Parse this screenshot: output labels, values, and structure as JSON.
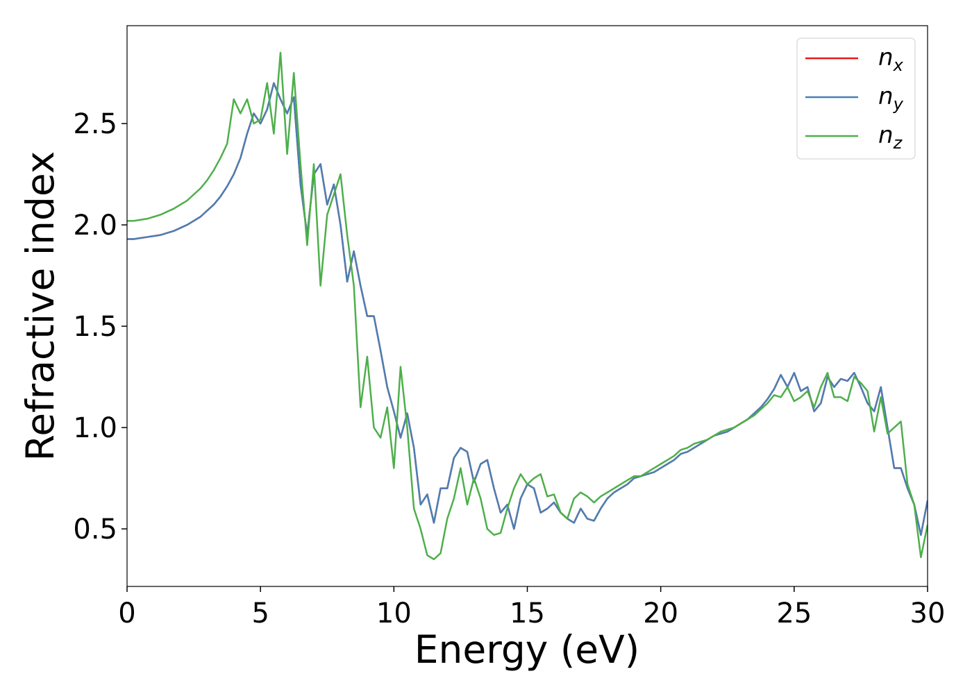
{
  "chart_data": {
    "type": "line",
    "xlabel": "Energy (eV)",
    "ylabel": "Refractive index",
    "x": [
      0,
      0.25,
      0.5,
      0.75,
      1,
      1.25,
      1.5,
      1.75,
      2,
      2.25,
      2.5,
      2.75,
      3,
      3.25,
      3.5,
      3.75,
      4,
      4.25,
      4.5,
      4.75,
      5,
      5.25,
      5.5,
      5.75,
      6,
      6.25,
      6.5,
      6.75,
      7,
      7.25,
      7.5,
      7.75,
      8,
      8.25,
      8.5,
      8.75,
      9,
      9.25,
      9.5,
      9.75,
      10,
      10.25,
      10.5,
      10.75,
      11,
      11.25,
      11.5,
      11.75,
      12,
      12.25,
      12.5,
      12.75,
      13,
      13.25,
      13.5,
      13.75,
      14,
      14.25,
      14.5,
      14.75,
      15,
      15.25,
      15.5,
      15.75,
      16,
      16.25,
      16.5,
      16.75,
      17,
      17.25,
      17.5,
      17.75,
      18,
      18.25,
      18.5,
      18.75,
      19,
      19.25,
      19.5,
      19.75,
      20,
      20.25,
      20.5,
      20.75,
      21,
      21.25,
      21.5,
      21.75,
      22,
      22.25,
      22.5,
      22.75,
      23,
      23.25,
      23.5,
      23.75,
      24,
      24.25,
      24.5,
      24.75,
      25,
      25.25,
      25.5,
      25.75,
      26,
      26.25,
      26.5,
      26.75,
      27,
      27.25,
      27.5,
      27.75,
      28,
      28.25,
      28.5,
      28.75,
      29,
      29.25,
      29.5,
      29.75,
      30
    ],
    "series": [
      {
        "name": "nx",
        "color": "#e41a1c",
        "values": [
          1.93,
          1.93,
          1.935,
          1.94,
          1.945,
          1.95,
          1.96,
          1.97,
          1.985,
          2.0,
          2.02,
          2.04,
          2.07,
          2.1,
          2.14,
          2.19,
          2.25,
          2.33,
          2.45,
          2.55,
          2.5,
          2.57,
          2.7,
          2.62,
          2.55,
          2.63,
          2.2,
          1.95,
          2.25,
          2.3,
          2.1,
          2.2,
          2.0,
          1.72,
          1.87,
          1.7,
          1.55,
          1.55,
          1.38,
          1.2,
          1.08,
          0.95,
          1.07,
          0.9,
          0.62,
          0.67,
          0.53,
          0.7,
          0.7,
          0.85,
          0.9,
          0.88,
          0.73,
          0.82,
          0.84,
          0.7,
          0.58,
          0.62,
          0.5,
          0.65,
          0.72,
          0.7,
          0.58,
          0.6,
          0.63,
          0.58,
          0.55,
          0.53,
          0.6,
          0.55,
          0.54,
          0.6,
          0.65,
          0.68,
          0.7,
          0.72,
          0.75,
          0.76,
          0.77,
          0.78,
          0.8,
          0.82,
          0.84,
          0.87,
          0.88,
          0.9,
          0.92,
          0.94,
          0.96,
          0.97,
          0.98,
          1.0,
          1.02,
          1.04,
          1.07,
          1.1,
          1.14,
          1.19,
          1.26,
          1.2,
          1.27,
          1.18,
          1.2,
          1.08,
          1.12,
          1.25,
          1.2,
          1.24,
          1.23,
          1.27,
          1.2,
          1.12,
          1.08,
          1.2,
          1.0,
          0.8,
          0.8,
          0.7,
          0.62,
          0.47,
          0.64
        ]
      },
      {
        "name": "ny",
        "color": "#4a7fb5",
        "values": [
          1.93,
          1.93,
          1.935,
          1.94,
          1.945,
          1.95,
          1.96,
          1.97,
          1.985,
          2.0,
          2.02,
          2.04,
          2.07,
          2.1,
          2.14,
          2.19,
          2.25,
          2.33,
          2.45,
          2.55,
          2.5,
          2.57,
          2.7,
          2.62,
          2.55,
          2.63,
          2.2,
          1.95,
          2.25,
          2.3,
          2.1,
          2.2,
          2.0,
          1.72,
          1.87,
          1.7,
          1.55,
          1.55,
          1.38,
          1.2,
          1.08,
          0.95,
          1.07,
          0.9,
          0.62,
          0.67,
          0.53,
          0.7,
          0.7,
          0.85,
          0.9,
          0.88,
          0.73,
          0.82,
          0.84,
          0.7,
          0.58,
          0.62,
          0.5,
          0.65,
          0.72,
          0.7,
          0.58,
          0.6,
          0.63,
          0.58,
          0.55,
          0.53,
          0.6,
          0.55,
          0.54,
          0.6,
          0.65,
          0.68,
          0.7,
          0.72,
          0.75,
          0.76,
          0.77,
          0.78,
          0.8,
          0.82,
          0.84,
          0.87,
          0.88,
          0.9,
          0.92,
          0.94,
          0.96,
          0.97,
          0.98,
          1.0,
          1.02,
          1.04,
          1.07,
          1.1,
          1.14,
          1.19,
          1.26,
          1.2,
          1.27,
          1.18,
          1.2,
          1.08,
          1.12,
          1.25,
          1.2,
          1.24,
          1.23,
          1.27,
          1.2,
          1.12,
          1.08,
          1.2,
          1.0,
          0.8,
          0.8,
          0.7,
          0.62,
          0.47,
          0.64
        ]
      },
      {
        "name": "nz",
        "color": "#4daf4a",
        "values": [
          2.02,
          2.02,
          2.025,
          2.03,
          2.04,
          2.05,
          2.065,
          2.08,
          2.1,
          2.12,
          2.15,
          2.18,
          2.22,
          2.27,
          2.33,
          2.4,
          2.62,
          2.55,
          2.62,
          2.5,
          2.52,
          2.7,
          2.45,
          2.85,
          2.35,
          2.75,
          2.3,
          1.9,
          2.3,
          1.7,
          2.05,
          2.15,
          2.25,
          1.95,
          1.7,
          1.1,
          1.35,
          1.0,
          0.95,
          1.1,
          0.8,
          1.3,
          1.0,
          0.6,
          0.5,
          0.37,
          0.35,
          0.38,
          0.55,
          0.65,
          0.8,
          0.62,
          0.75,
          0.65,
          0.5,
          0.47,
          0.48,
          0.6,
          0.7,
          0.77,
          0.72,
          0.75,
          0.77,
          0.66,
          0.67,
          0.58,
          0.55,
          0.65,
          0.68,
          0.66,
          0.63,
          0.66,
          0.68,
          0.7,
          0.72,
          0.74,
          0.76,
          0.76,
          0.78,
          0.8,
          0.82,
          0.84,
          0.86,
          0.89,
          0.9,
          0.92,
          0.93,
          0.94,
          0.96,
          0.98,
          0.99,
          1.0,
          1.02,
          1.04,
          1.06,
          1.09,
          1.12,
          1.16,
          1.15,
          1.2,
          1.13,
          1.15,
          1.18,
          1.1,
          1.2,
          1.27,
          1.15,
          1.15,
          1.13,
          1.25,
          1.22,
          1.18,
          0.98,
          1.15,
          0.97,
          1.0,
          1.03,
          0.72,
          0.62,
          0.36,
          0.52
        ]
      }
    ],
    "xlim": [
      0,
      30
    ],
    "xticks": [
      0,
      5,
      10,
      15,
      20,
      25,
      30
    ],
    "ylim": [
      0.216,
      2.983
    ],
    "yticks": [
      0.5,
      {
        "value": 1,
        "label": "1.0"
      },
      1.5,
      {
        "value": 2,
        "label": "2.0"
      },
      2.5
    ],
    "grid": false,
    "legend": "upper right"
  }
}
